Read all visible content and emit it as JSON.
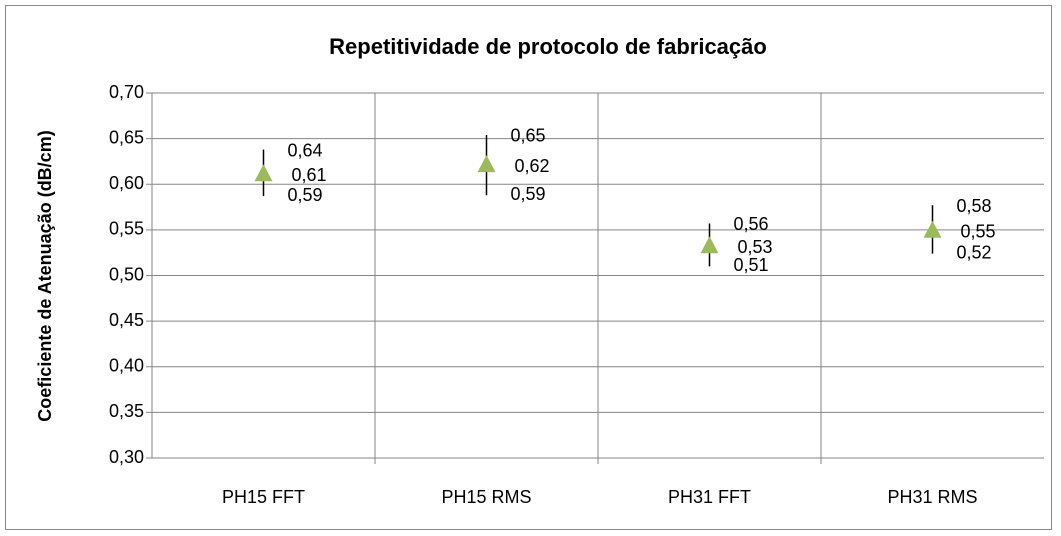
{
  "chart_data": {
    "type": "high-low",
    "title": "Repetitividade de protocolo de fabricação",
    "ylabel": "Coeficiente de Atenuação (dB/cm)",
    "categories": [
      "PH15 FFT",
      "PH15 RMS",
      "PH31 FFT",
      "PH31 RMS"
    ],
    "values": [
      0.611,
      0.621,
      0.532,
      0.549
    ],
    "value_labels": [
      "0,61",
      "0,62",
      "0,53",
      "0,55"
    ],
    "highs": [
      0.638,
      0.654,
      0.557,
      0.577
    ],
    "high_labels": [
      "0,64",
      "0,65",
      "0,56",
      "0,58"
    ],
    "lows": [
      0.587,
      0.588,
      0.51,
      0.524
    ],
    "low_labels": [
      "0,59",
      "0,59",
      "0,51",
      "0,52"
    ],
    "color": "#9bbb59",
    "ylim": [
      0.3,
      0.7
    ],
    "yticks": [
      {
        "value": 0.3,
        "label": "0,30"
      },
      {
        "value": 0.35,
        "label": "0,35"
      },
      {
        "value": 0.4,
        "label": "0,40"
      },
      {
        "value": 0.45,
        "label": "0,45"
      },
      {
        "value": 0.5,
        "label": "0,50"
      },
      {
        "value": 0.55,
        "label": "0,55"
      },
      {
        "value": 0.6,
        "label": "0,60"
      },
      {
        "value": 0.65,
        "label": "0,65"
      },
      {
        "value": 0.7,
        "label": "0,70"
      }
    ],
    "grid": true
  }
}
